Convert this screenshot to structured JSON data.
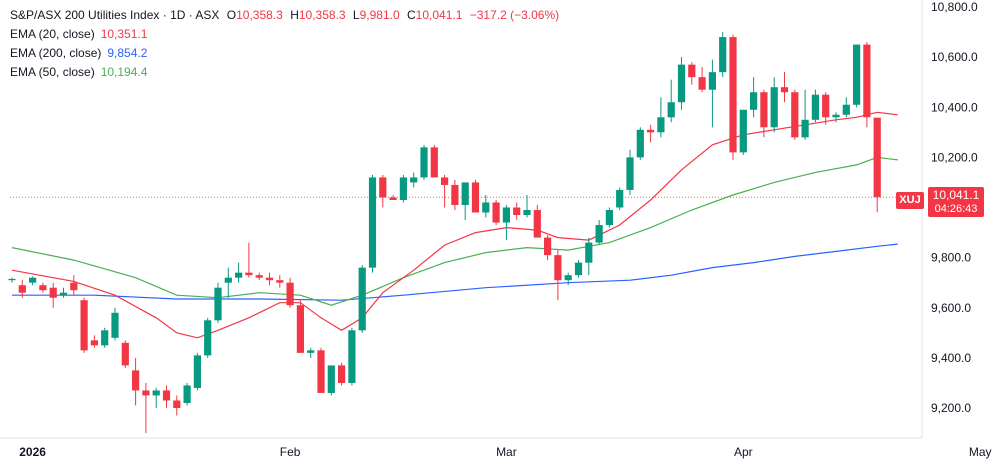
{
  "header": {
    "title": "S&P/ASX 200 Utilities Index · 1D · ASX",
    "open_label": "O",
    "open": "10,358.3",
    "high_label": "H",
    "high": "10,358.3",
    "low_label": "L",
    "low": "9,981.0",
    "close_label": "C",
    "close": "10,041.1",
    "change": "−317.2 (−3.06%)"
  },
  "indicators": [
    {
      "label": "EMA (20, close)",
      "value": "10,351.1",
      "color": "#f23645"
    },
    {
      "label": "EMA (200, close)",
      "value": "9,854.2",
      "color": "#2962ff"
    },
    {
      "label": "EMA (50, close)",
      "value": "10,194.4",
      "color": "#4caf50"
    }
  ],
  "price_badge": {
    "symbol": "XUJ",
    "price": "10,041.1",
    "countdown": "04:26:43"
  },
  "colors": {
    "up": "#089981",
    "down": "#f23645",
    "ema20": "#f23645",
    "ema50": "#4caf50",
    "ema200": "#2962ff"
  },
  "chart_data": {
    "type": "candlestick",
    "y_axis": {
      "range": [
        9080,
        10820
      ],
      "ticks": [
        "10,800.0",
        "10,600.0",
        "10,400.0",
        "10,200.0",
        "9,800.0",
        "9,600.0",
        "9,400.0",
        "9,200.0"
      ],
      "tick_values": [
        10800,
        10600,
        10400,
        10200,
        9800,
        9600,
        9400,
        9200
      ],
      "position": "right"
    },
    "x_axis": {
      "ticks": [
        "2026",
        "Feb",
        "Mar",
        "Apr",
        "May"
      ],
      "tick_index": [
        2,
        27,
        48,
        71,
        94
      ]
    },
    "last_price_line": 10041.1,
    "candles": [
      [
        9710,
        9720,
        9700,
        9715
      ],
      [
        9690,
        9710,
        9640,
        9660
      ],
      [
        9700,
        9725,
        9690,
        9720
      ],
      [
        9690,
        9700,
        9660,
        9670
      ],
      [
        9680,
        9700,
        9600,
        9640
      ],
      [
        9650,
        9680,
        9640,
        9660
      ],
      [
        9700,
        9730,
        9650,
        9670
      ],
      [
        9630,
        9640,
        9420,
        9430
      ],
      [
        9470,
        9490,
        9440,
        9450
      ],
      [
        9450,
        9520,
        9440,
        9510
      ],
      [
        9480,
        9600,
        9470,
        9580
      ],
      [
        9460,
        9470,
        9360,
        9370
      ],
      [
        9350,
        9400,
        9210,
        9270
      ],
      [
        9270,
        9300,
        9100,
        9250
      ],
      [
        9250,
        9280,
        9200,
        9270
      ],
      [
        9270,
        9290,
        9200,
        9230
      ],
      [
        9230,
        9250,
        9170,
        9200
      ],
      [
        9220,
        9300,
        9210,
        9290
      ],
      [
        9280,
        9420,
        9270,
        9410
      ],
      [
        9410,
        9560,
        9400,
        9550
      ],
      [
        9550,
        9700,
        9540,
        9680
      ],
      [
        9700,
        9760,
        9640,
        9720
      ],
      [
        9720,
        9780,
        9700,
        9740
      ],
      [
        9740,
        9860,
        9720,
        9730
      ],
      [
        9730,
        9740,
        9710,
        9720
      ],
      [
        9720,
        9740,
        9690,
        9710
      ],
      [
        9710,
        9730,
        9680,
        9700
      ],
      [
        9700,
        9720,
        9600,
        9610
      ],
      [
        9610,
        9630,
        9420,
        9420
      ],
      [
        9420,
        9440,
        9400,
        9430
      ],
      [
        9430,
        9440,
        9260,
        9260
      ],
      [
        9260,
        9360,
        9250,
        9370
      ],
      [
        9370,
        9380,
        9290,
        9300
      ],
      [
        9300,
        9520,
        9290,
        9510
      ],
      [
        9510,
        9770,
        9500,
        9760
      ],
      [
        9760,
        10130,
        9740,
        10120
      ],
      [
        10120,
        10130,
        10000,
        10040
      ],
      [
        10040,
        10050,
        10030,
        10030
      ],
      [
        10030,
        10130,
        10020,
        10120
      ],
      [
        10100,
        10140,
        10080,
        10120
      ],
      [
        10120,
        10250,
        10110,
        10240
      ],
      [
        10240,
        10250,
        10120,
        10120
      ],
      [
        10120,
        10130,
        10000,
        10090
      ],
      [
        10090,
        10110,
        9990,
        10010
      ],
      [
        10010,
        10100,
        9950,
        10100
      ],
      [
        10100,
        10110,
        9980,
        9980
      ],
      [
        9980,
        10050,
        9960,
        10020
      ],
      [
        10020,
        10030,
        9930,
        9940
      ],
      [
        9940,
        10010,
        9870,
        10000
      ],
      [
        10000,
        10020,
        9950,
        9970
      ],
      [
        9970,
        10050,
        9960,
        9990
      ],
      [
        9990,
        10010,
        9880,
        9880
      ],
      [
        9880,
        9890,
        9790,
        9810
      ],
      [
        9810,
        9830,
        9630,
        9710
      ],
      [
        9710,
        9740,
        9690,
        9730
      ],
      [
        9730,
        9790,
        9720,
        9780
      ],
      [
        9780,
        9880,
        9730,
        9860
      ],
      [
        9860,
        9950,
        9850,
        9930
      ],
      [
        9930,
        10000,
        9920,
        9990
      ],
      [
        10000,
        10080,
        9990,
        10070
      ],
      [
        10070,
        10230,
        10050,
        10200
      ],
      [
        10200,
        10320,
        10190,
        10310
      ],
      [
        10310,
        10330,
        10260,
        10300
      ],
      [
        10300,
        10440,
        10280,
        10360
      ],
      [
        10360,
        10510,
        10340,
        10420
      ],
      [
        10420,
        10600,
        10390,
        10570
      ],
      [
        10570,
        10580,
        10490,
        10520
      ],
      [
        10520,
        10560,
        10460,
        10470
      ],
      [
        10470,
        10590,
        10320,
        10540
      ],
      [
        10540,
        10700,
        10520,
        10680
      ],
      [
        10680,
        10690,
        10190,
        10220
      ],
      [
        10220,
        10390,
        10210,
        10390
      ],
      [
        10390,
        10520,
        10360,
        10460
      ],
      [
        10460,
        10470,
        10280,
        10320
      ],
      [
        10320,
        10520,
        10300,
        10480
      ],
      [
        10480,
        10540,
        10420,
        10460
      ],
      [
        10460,
        10470,
        10270,
        10280
      ],
      [
        10280,
        10470,
        10270,
        10350
      ],
      [
        10350,
        10470,
        10340,
        10450
      ],
      [
        10450,
        10460,
        10330,
        10360
      ],
      [
        10360,
        10380,
        10340,
        10370
      ],
      [
        10370,
        10440,
        10360,
        10410
      ],
      [
        10410,
        10650,
        10400,
        10650
      ],
      [
        10650,
        10660,
        10320,
        10360
      ],
      [
        10358.3,
        10358.3,
        9981,
        10041.1
      ]
    ],
    "ema20": [
      [
        0,
        9750
      ],
      [
        6,
        9705
      ],
      [
        10,
        9650
      ],
      [
        14,
        9560
      ],
      [
        16,
        9500
      ],
      [
        18,
        9480
      ],
      [
        20,
        9510
      ],
      [
        23,
        9560
      ],
      [
        26,
        9620
      ],
      [
        28,
        9620
      ],
      [
        30,
        9560
      ],
      [
        32,
        9510
      ],
      [
        34,
        9560
      ],
      [
        36,
        9660
      ],
      [
        39,
        9750
      ],
      [
        42,
        9850
      ],
      [
        45,
        9900
      ],
      [
        48,
        9920
      ],
      [
        51,
        9910
      ],
      [
        53,
        9880
      ],
      [
        56,
        9870
      ],
      [
        59,
        9930
      ],
      [
        62,
        10030
      ],
      [
        65,
        10150
      ],
      [
        68,
        10250
      ],
      [
        71,
        10290
      ],
      [
        74,
        10310
      ],
      [
        77,
        10330
      ],
      [
        80,
        10350
      ],
      [
        82,
        10360
      ],
      [
        84,
        10380
      ],
      [
        86,
        10370
      ]
    ],
    "ema50": [
      [
        0,
        9840
      ],
      [
        6,
        9790
      ],
      [
        12,
        9720
      ],
      [
        16,
        9650
      ],
      [
        20,
        9640
      ],
      [
        24,
        9660
      ],
      [
        28,
        9650
      ],
      [
        31,
        9610
      ],
      [
        34,
        9650
      ],
      [
        38,
        9720
      ],
      [
        42,
        9780
      ],
      [
        46,
        9820
      ],
      [
        50,
        9840
      ],
      [
        54,
        9830
      ],
      [
        58,
        9860
      ],
      [
        62,
        9920
      ],
      [
        66,
        9990
      ],
      [
        70,
        10050
      ],
      [
        74,
        10100
      ],
      [
        78,
        10140
      ],
      [
        82,
        10170
      ],
      [
        84,
        10200
      ],
      [
        86,
        10190
      ]
    ],
    "ema200": [
      [
        0,
        9650
      ],
      [
        8,
        9650
      ],
      [
        16,
        9635
      ],
      [
        24,
        9635
      ],
      [
        32,
        9630
      ],
      [
        38,
        9650
      ],
      [
        46,
        9680
      ],
      [
        54,
        9700
      ],
      [
        60,
        9710
      ],
      [
        64,
        9730
      ],
      [
        68,
        9760
      ],
      [
        72,
        9780
      ],
      [
        76,
        9805
      ],
      [
        80,
        9825
      ],
      [
        84,
        9845
      ],
      [
        86,
        9854
      ]
    ]
  }
}
